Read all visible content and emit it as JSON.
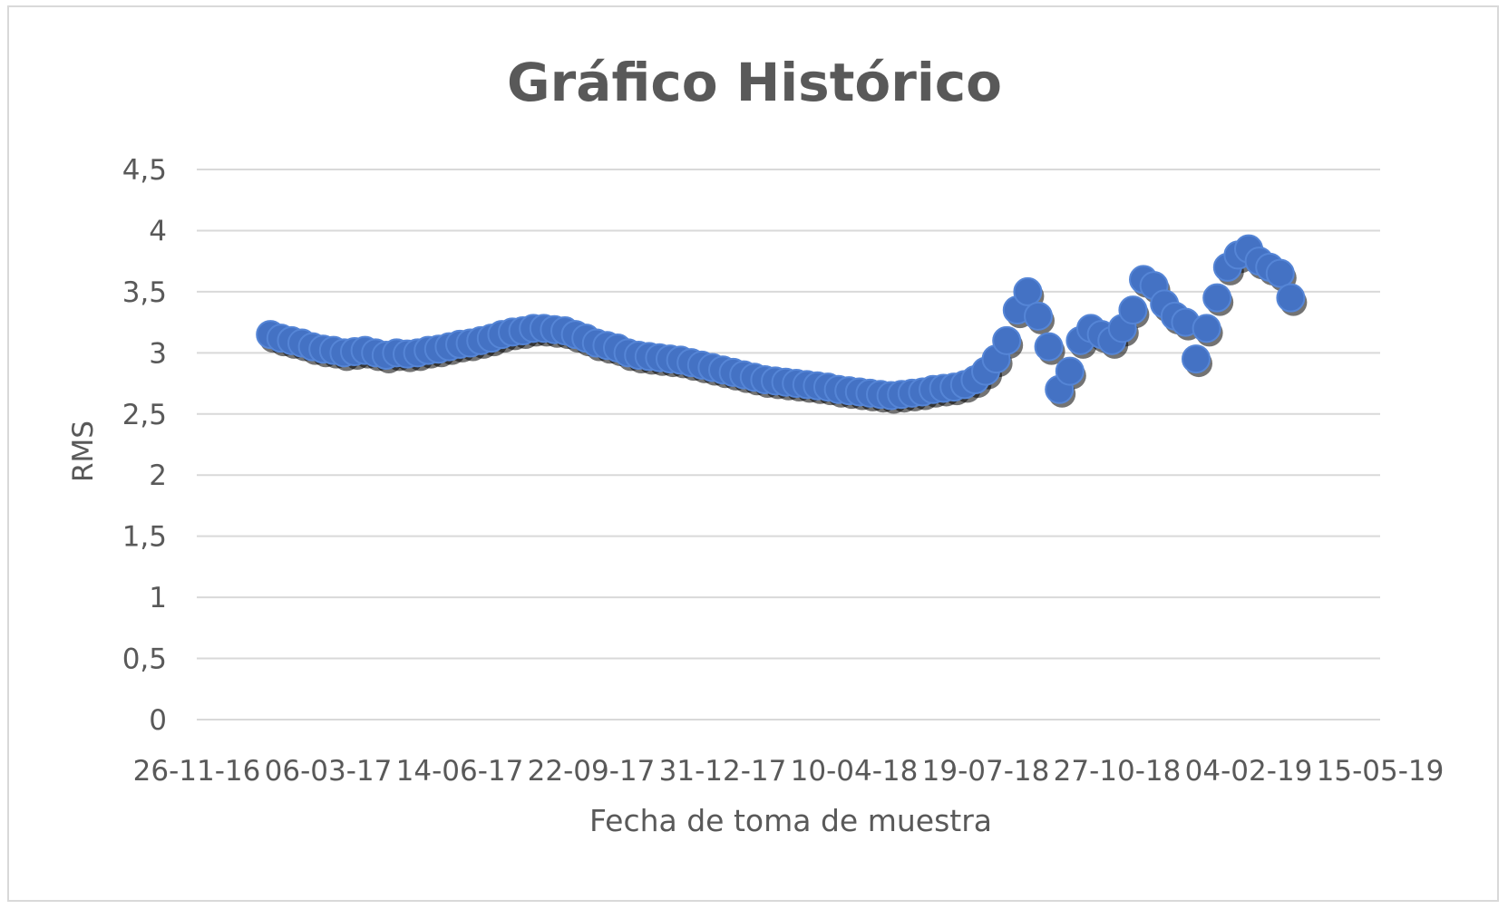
{
  "chart_data": {
    "type": "scatter",
    "title": "Gráfico Histórico",
    "xlabel": "Fecha de toma de muestra",
    "ylabel": "RMS",
    "ylim": [
      0,
      4.5
    ],
    "xlim": [
      "2016-11-26",
      "2019-05-15"
    ],
    "y_ticks": [
      "0",
      "0,5",
      "1",
      "1,5",
      "2",
      "2,5",
      "3",
      "3,5",
      "4",
      "4,5"
    ],
    "x_ticks": [
      "26-11-16",
      "06-03-17",
      "14-06-17",
      "22-09-17",
      "31-12-17",
      "10-04-18",
      "19-07-18",
      "27-10-18",
      "04-02-19",
      "15-05-19"
    ],
    "grid": true,
    "legend": "none",
    "marker_color": "#4472c4",
    "series": [
      {
        "x": [
          "2017-01-21",
          "2017-01-29",
          "2017-02-06",
          "2017-02-14",
          "2017-02-22",
          "2017-03-02",
          "2017-03-10",
          "2017-03-18",
          "2017-03-26",
          "2017-04-03",
          "2017-04-11",
          "2017-04-19",
          "2017-04-27",
          "2017-05-05",
          "2017-05-13",
          "2017-05-21",
          "2017-05-29",
          "2017-06-06",
          "2017-06-14",
          "2017-06-22",
          "2017-06-30",
          "2017-07-08",
          "2017-07-16",
          "2017-07-24",
          "2017-08-01",
          "2017-08-09",
          "2017-08-17",
          "2017-08-25",
          "2017-09-02",
          "2017-09-10",
          "2017-09-18",
          "2017-09-26",
          "2017-10-04",
          "2017-10-12",
          "2017-10-20",
          "2017-10-28",
          "2017-11-05",
          "2017-11-13",
          "2017-11-21",
          "2017-11-29",
          "2017-12-07",
          "2017-12-15",
          "2017-12-23",
          "2017-12-31",
          "2018-01-08",
          "2018-01-16",
          "2018-01-24",
          "2018-02-01",
          "2018-02-09",
          "2018-02-17",
          "2018-02-25",
          "2018-03-05",
          "2018-03-13",
          "2018-03-21",
          "2018-03-29",
          "2018-04-06",
          "2018-04-14",
          "2018-04-22",
          "2018-04-30",
          "2018-05-08",
          "2018-05-16",
          "2018-05-24",
          "2018-06-01",
          "2018-06-09",
          "2018-06-17",
          "2018-06-25",
          "2018-07-03",
          "2018-07-11",
          "2018-07-19",
          "2018-07-27",
          "2018-08-04",
          "2018-08-12",
          "2018-08-20",
          "2018-08-28",
          "2018-09-05",
          "2018-09-13",
          "2018-09-21",
          "2018-09-29",
          "2018-10-07",
          "2018-10-15",
          "2018-10-23",
          "2018-10-31",
          "2018-11-08",
          "2018-11-16",
          "2018-11-24",
          "2018-12-02",
          "2018-12-10",
          "2018-12-18",
          "2018-12-26",
          "2019-01-03",
          "2019-01-11",
          "2019-01-19",
          "2019-01-27",
          "2019-02-04",
          "2019-02-12",
          "2019-02-20",
          "2019-02-28",
          "2019-03-08"
        ],
        "y": [
          3.15,
          3.12,
          3.1,
          3.08,
          3.05,
          3.03,
          3.02,
          3.0,
          3.01,
          3.02,
          3.0,
          2.98,
          3.0,
          2.99,
          3.0,
          3.02,
          3.03,
          3.05,
          3.07,
          3.08,
          3.1,
          3.12,
          3.15,
          3.17,
          3.18,
          3.2,
          3.2,
          3.19,
          3.18,
          3.15,
          3.12,
          3.08,
          3.06,
          3.04,
          3.0,
          2.98,
          2.97,
          2.96,
          2.95,
          2.94,
          2.92,
          2.9,
          2.88,
          2.86,
          2.84,
          2.82,
          2.8,
          2.78,
          2.77,
          2.76,
          2.75,
          2.74,
          2.73,
          2.72,
          2.7,
          2.69,
          2.68,
          2.67,
          2.66,
          2.65,
          2.66,
          2.67,
          2.68,
          2.7,
          2.71,
          2.72,
          2.74,
          2.78,
          2.85,
          2.95,
          3.1,
          3.35,
          3.5,
          3.3,
          3.05,
          2.7,
          2.85,
          3.1,
          3.2,
          3.15,
          3.1,
          3.2,
          3.35,
          3.6,
          3.55,
          3.4,
          3.3,
          3.25,
          2.95,
          3.2,
          3.45,
          3.7,
          3.8,
          3.85,
          3.75,
          3.7,
          3.65,
          3.45
        ]
      }
    ]
  }
}
